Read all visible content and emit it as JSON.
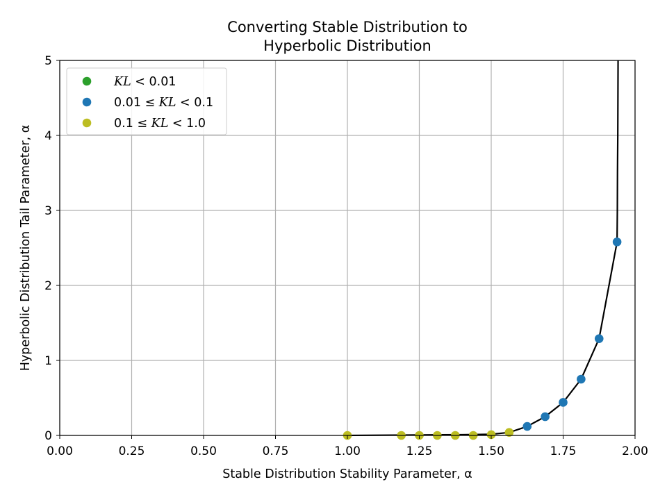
{
  "chart_data": {
    "type": "scatter",
    "title": "Converting Stable Distribution to\nHyperbolic Distribution",
    "xlabel": "Stable Distribution Stability Parameter, α",
    "ylabel": "Hyperbolic Distribution Tail Parameter, α",
    "xlim": [
      0.0,
      2.0
    ],
    "ylim": [
      0,
      5
    ],
    "xticks": [
      "0.00",
      "0.25",
      "0.50",
      "0.75",
      "1.00",
      "1.25",
      "1.50",
      "1.75",
      "2.00"
    ],
    "yticks": [
      "0",
      "1",
      "2",
      "3",
      "4",
      "5"
    ],
    "grid": true,
    "legend_position": "top-left",
    "colors": {
      "green": "#2ca02c",
      "blue": "#1f77b4",
      "olive": "#bcbd22",
      "line": "#000000",
      "grid": "#b0b0b0"
    },
    "series": [
      {
        "name": "KL < 0.01",
        "legend_parts": [
          "KL",
          " < 0.01"
        ],
        "color": "#2ca02c",
        "points": []
      },
      {
        "name": "0.01 ≤ KL < 0.1",
        "legend_parts": [
          "0.01 ≤ ",
          "KL",
          " < 0.1"
        ],
        "color": "#1f77b4",
        "points": [
          [
            1.625,
            0.12
          ],
          [
            1.6875,
            0.25
          ],
          [
            1.75,
            0.44
          ],
          [
            1.8125,
            0.75
          ],
          [
            1.875,
            1.29
          ],
          [
            1.9375,
            2.58
          ]
        ]
      },
      {
        "name": "0.1 ≤ KL < 1.0",
        "legend_parts": [
          "0.1 ≤ ",
          "KL",
          " < 1.0"
        ],
        "color": "#bcbd22",
        "points": [
          [
            1.0,
            0.0
          ],
          [
            1.1875,
            0.0
          ],
          [
            1.25,
            0.0
          ],
          [
            1.3125,
            0.0
          ],
          [
            1.375,
            0.0
          ],
          [
            1.4375,
            0.0
          ],
          [
            1.5,
            0.01
          ],
          [
            1.5625,
            0.04
          ]
        ]
      }
    ],
    "curve": {
      "color": "#000000",
      "points": [
        [
          1.0,
          0.0
        ],
        [
          1.2,
          0.005
        ],
        [
          1.4,
          0.01
        ],
        [
          1.5,
          0.015
        ],
        [
          1.5625,
          0.04
        ],
        [
          1.625,
          0.12
        ],
        [
          1.6875,
          0.25
        ],
        [
          1.75,
          0.44
        ],
        [
          1.8125,
          0.75
        ],
        [
          1.875,
          1.29
        ],
        [
          1.9375,
          2.58
        ],
        [
          1.9385,
          3.0
        ],
        [
          1.939,
          3.5
        ],
        [
          1.94,
          4.0
        ],
        [
          1.9405,
          4.5
        ],
        [
          1.941,
          5.0
        ]
      ]
    }
  }
}
